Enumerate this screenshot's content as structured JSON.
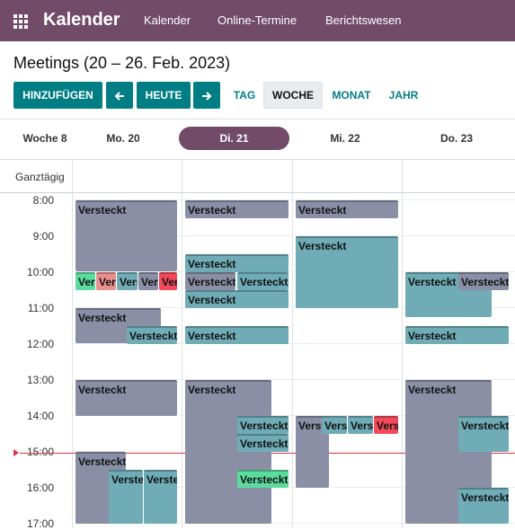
{
  "app": {
    "title": "Kalender"
  },
  "nav": [
    "Kalender",
    "Online-Termine",
    "Berichtswesen"
  ],
  "subtitle": "Meetings (20 – 26. Feb. 2023)",
  "toolbar": {
    "add": "HINZUFÜGEN",
    "prev_icon": "arrow-left-icon",
    "today": "HEUTE",
    "next_icon": "arrow-right-icon",
    "views": [
      "TAG",
      "WOCHE",
      "MONAT",
      "JAHR"
    ],
    "active_view": "WOCHE"
  },
  "calendar": {
    "week_label": "Woche 8",
    "days": [
      {
        "label": "Mo. 20",
        "today": false
      },
      {
        "label": "Di. 21",
        "today": true
      },
      {
        "label": "Mi. 22",
        "today": false
      },
      {
        "label": "Do. 23",
        "today": false
      }
    ],
    "all_day_label": "Ganztägig",
    "hours": [
      "8:00",
      "9:00",
      "10:00",
      "11:00",
      "12:00",
      "13:00",
      "14:00",
      "15:00",
      "16:00",
      "17:00"
    ],
    "colors": {
      "gray": "#8A8FA6",
      "teal": "#6FACB6",
      "green": "#5BDB9E",
      "pink": "#EB8E8E",
      "red": "#F24A5A",
      "today": "#714B67",
      "brand": "#017E84"
    },
    "events": [
      {
        "day": 0,
        "title": "Versteckt",
        "color": "gray"
      },
      {
        "day": 0,
        "title": "Versteckt",
        "color": "green"
      },
      {
        "day": 0,
        "title": "Versteckt",
        "color": "pink"
      },
      {
        "day": 0,
        "title": "Versteckt",
        "color": "teal"
      },
      {
        "day": 0,
        "title": "Versteckt",
        "color": "gray"
      },
      {
        "day": 0,
        "title": "Versteckt",
        "color": "red"
      },
      {
        "day": 0,
        "title": "Versteckt",
        "color": "gray"
      },
      {
        "day": 0,
        "title": "Versteckt",
        "color": "teal"
      },
      {
        "day": 0,
        "title": "Versteckt",
        "color": "gray"
      },
      {
        "day": 0,
        "title": "Versteckt",
        "color": "gray"
      },
      {
        "day": 0,
        "title": "Versteckt",
        "color": "teal"
      },
      {
        "day": 0,
        "title": "Versteckt",
        "color": "teal"
      },
      {
        "day": 1,
        "title": "Versteckt",
        "color": "gray"
      },
      {
        "day": 1,
        "title": "Versteckt",
        "color": "teal"
      },
      {
        "day": 1,
        "title": "Versteckt",
        "color": "gray"
      },
      {
        "day": 1,
        "title": "Versteckt",
        "color": "teal"
      },
      {
        "day": 1,
        "title": "Versteckt",
        "color": "teal"
      },
      {
        "day": 1,
        "title": "Versteckt",
        "color": "teal"
      },
      {
        "day": 1,
        "title": "Versteckt",
        "color": "gray"
      },
      {
        "day": 1,
        "title": "Versteckt",
        "color": "teal"
      },
      {
        "day": 1,
        "title": "Versteckt",
        "color": "teal"
      },
      {
        "day": 1,
        "title": "Versteckt",
        "color": "green"
      },
      {
        "day": 2,
        "title": "Versteckt",
        "color": "gray"
      },
      {
        "day": 2,
        "title": "Versteckt",
        "color": "teal"
      },
      {
        "day": 2,
        "title": "Versteckt",
        "color": "gray"
      },
      {
        "day": 2,
        "title": "Versteckt",
        "color": "teal"
      },
      {
        "day": 2,
        "title": "Versteckt",
        "color": "teal"
      },
      {
        "day": 2,
        "title": "Versteckt",
        "color": "red"
      },
      {
        "day": 3,
        "title": "Versteckt",
        "color": "teal"
      },
      {
        "day": 3,
        "title": "Versteckt",
        "color": "gray"
      },
      {
        "day": 3,
        "title": "Versteckt",
        "color": "teal"
      },
      {
        "day": 3,
        "title": "Versteckt",
        "color": "gray"
      },
      {
        "day": 3,
        "title": "Versteckt",
        "color": "teal"
      },
      {
        "day": 3,
        "title": "Versteckt",
        "color": "teal"
      }
    ]
  }
}
